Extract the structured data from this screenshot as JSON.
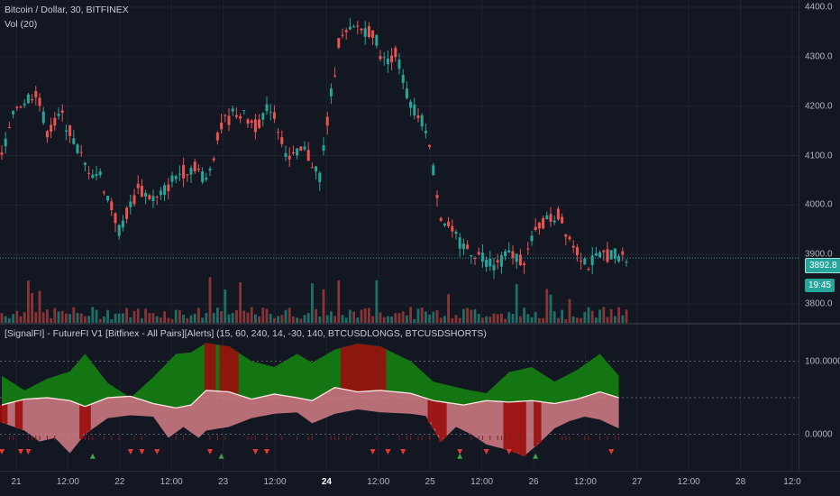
{
  "chart_data": [
    {
      "type": "candlestick",
      "title": "Bitcoin / Dollar, 30, BITFINEX",
      "study": "Vol (20)",
      "ylim": [
        3780,
        4400
      ],
      "y_ticks": [
        "4400.0",
        "4300.0",
        "4200.0",
        "4100.0",
        "4000.0",
        "3900.0",
        "3800.0"
      ],
      "last_price": "3892.8",
      "countdown": "19:45",
      "price_path": [
        [
          0,
          4100
        ],
        [
          4,
          4200
        ],
        [
          9,
          4230
        ],
        [
          12,
          4150
        ],
        [
          16,
          4180
        ],
        [
          22,
          4080
        ],
        [
          26,
          4060
        ],
        [
          31,
          3950
        ],
        [
          36,
          4030
        ],
        [
          41,
          4010
        ],
        [
          46,
          4060
        ],
        [
          51,
          4080
        ],
        [
          54,
          4050
        ],
        [
          58,
          4160
        ],
        [
          62,
          4190
        ],
        [
          67,
          4160
        ],
        [
          71,
          4200
        ],
        [
          76,
          4090
        ],
        [
          80,
          4110
        ],
        [
          84,
          4060
        ],
        [
          89,
          4330
        ],
        [
          94,
          4360
        ],
        [
          98,
          4350
        ],
        [
          101,
          4290
        ],
        [
          104,
          4310
        ],
        [
          108,
          4200
        ],
        [
          112,
          4160
        ],
        [
          116,
          3980
        ],
        [
          121,
          3920
        ],
        [
          126,
          3900
        ],
        [
          130,
          3880
        ],
        [
          134,
          3900
        ],
        [
          138,
          3890
        ],
        [
          142,
          3960
        ],
        [
          147,
          3980
        ],
        [
          151,
          3920
        ],
        [
          155,
          3880
        ],
        [
          159,
          3900
        ],
        [
          162,
          3900
        ],
        [
          165,
          3890
        ]
      ]
    },
    {
      "type": "area",
      "title": "[SignalFI] - FutureFI V1 [Bitfinex - All Pairs][Alerts] (15, 60, 240, 14, -30, 140, BTCUSDLONGS, BTCUSDSHORTS)",
      "ylim": [
        -50,
        150
      ],
      "y_ticks": [
        "100.0000",
        "0.0000"
      ],
      "series": [
        {
          "values_path": [
            [
              0,
              80
            ],
            [
              6,
              60
            ],
            [
              12,
              76
            ],
            [
              18,
              86
            ],
            [
              22,
              110
            ],
            [
              28,
              70
            ],
            [
              34,
              50
            ],
            [
              40,
              78
            ],
            [
              46,
              110
            ],
            [
              50,
              112
            ],
            [
              54,
              125
            ],
            [
              60,
              120
            ],
            [
              66,
              100
            ],
            [
              72,
              92
            ],
            [
              78,
              110
            ],
            [
              82,
              98
            ],
            [
              88,
              116
            ],
            [
              94,
              124
            ],
            [
              100,
              120
            ],
            [
              108,
              100
            ],
            [
              114,
              72
            ],
            [
              122,
              62
            ],
            [
              128,
              56
            ],
            [
              134,
              85
            ],
            [
              140,
              92
            ],
            [
              146,
              72
            ],
            [
              152,
              88
            ],
            [
              158,
              110
            ],
            [
              163,
              80
            ]
          ]
        },
        {
          "values_path": [
            [
              0,
              40
            ],
            [
              6,
              48
            ],
            [
              12,
              50
            ],
            [
              18,
              46
            ],
            [
              22,
              38
            ],
            [
              28,
              50
            ],
            [
              34,
              52
            ],
            [
              40,
              42
            ],
            [
              46,
              36
            ],
            [
              50,
              40
            ],
            [
              54,
              60
            ],
            [
              60,
              58
            ],
            [
              66,
              48
            ],
            [
              72,
              55
            ],
            [
              78,
              50
            ],
            [
              82,
              46
            ],
            [
              88,
              64
            ],
            [
              94,
              58
            ],
            [
              100,
              60
            ],
            [
              108,
              56
            ],
            [
              114,
              46
            ],
            [
              122,
              40
            ],
            [
              128,
              46
            ],
            [
              134,
              44
            ],
            [
              140,
              46
            ],
            [
              146,
              42
            ],
            [
              152,
              48
            ],
            [
              158,
              58
            ],
            [
              163,
              50
            ]
          ]
        },
        {
          "values_path": [
            [
              0,
              16
            ],
            [
              6,
              5
            ],
            [
              10,
              -10
            ],
            [
              14,
              -5
            ],
            [
              18,
              -26
            ],
            [
              22,
              0
            ],
            [
              28,
              22
            ],
            [
              34,
              26
            ],
            [
              40,
              24
            ],
            [
              44,
              -5
            ],
            [
              48,
              10
            ],
            [
              52,
              -5
            ],
            [
              54,
              5
            ],
            [
              60,
              10
            ],
            [
              66,
              22
            ],
            [
              72,
              28
            ],
            [
              78,
              30
            ],
            [
              82,
              15
            ],
            [
              88,
              28
            ],
            [
              94,
              34
            ],
            [
              100,
              30
            ],
            [
              108,
              28
            ],
            [
              112,
              25
            ],
            [
              116,
              -10
            ],
            [
              120,
              10
            ],
            [
              124,
              0
            ],
            [
              128,
              -14
            ],
            [
              134,
              -22
            ],
            [
              138,
              -30
            ],
            [
              142,
              -12
            ],
            [
              146,
              8
            ],
            [
              150,
              18
            ],
            [
              154,
              24
            ],
            [
              158,
              20
            ],
            [
              163,
              8
            ]
          ]
        }
      ]
    }
  ],
  "x_axis": {
    "labels": [
      "21",
      "12:00",
      "22",
      "12:00",
      "23",
      "12:00",
      "24",
      "12:00",
      "25",
      "12:00",
      "26",
      "12:00",
      "27",
      "12:00",
      "28",
      "12:0"
    ],
    "bold_index": 6
  },
  "colors": {
    "up": "#26a69a",
    "down": "#ef5350",
    "green_fill": "#137b13",
    "red_fill": "#9b0d0d",
    "pink_fill": "#d67e85"
  }
}
